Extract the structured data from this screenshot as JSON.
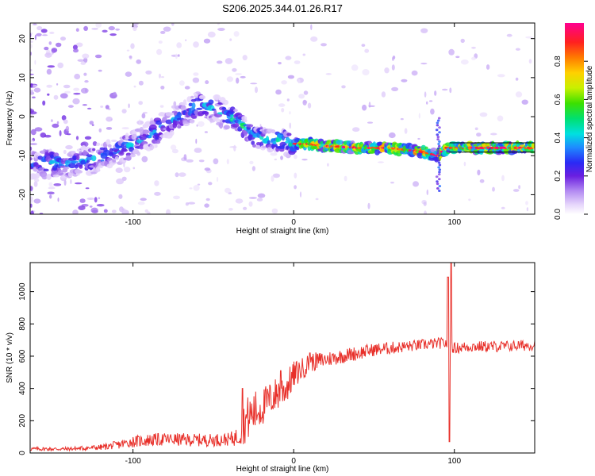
{
  "title": "S206.2025.344.01.26.R17",
  "chart_data": [
    {
      "type": "heatmap",
      "name": "spectrogram",
      "xlabel": "Height of straight line (km)",
      "ylabel": "Frequency (Hz)",
      "xlim": [
        -164,
        150
      ],
      "ylim": [
        -25,
        24
      ],
      "xticks": [
        -100,
        0,
        100
      ],
      "xtick_labels": [
        "-100",
        "0",
        "100"
      ],
      "yticks": [
        -20,
        -10,
        0,
        10,
        20
      ],
      "ytick_labels": [
        "-20",
        "-10",
        "0",
        "10",
        "20"
      ],
      "ridge": {
        "x": [
          -164,
          -150,
          -140,
          -125,
          -110,
          -100,
          -90,
          -80,
          -70,
          -60,
          -55,
          -45,
          -35,
          -25,
          -15,
          -5,
          0,
          10,
          20,
          40,
          60,
          70,
          80,
          90,
          95,
          100,
          120,
          150
        ],
        "y": [
          -12,
          -12,
          -12,
          -11,
          -9,
          -7,
          -5,
          -2,
          0,
          3,
          3,
          1,
          -1,
          -5,
          -6,
          -6,
          -7,
          -7,
          -7.5,
          -8,
          -8,
          -8.5,
          -9,
          -10,
          -8,
          -8,
          -8,
          -8
        ]
      },
      "colorbar": {
        "label": "Normalized spectral amplitude",
        "ticks": [
          0.0,
          0.2,
          0.4,
          0.6,
          0.8
        ],
        "tick_labels": [
          "0.0",
          "0.2",
          "0.4",
          "0.6",
          "0.8"
        ],
        "range": [
          0,
          1
        ]
      }
    },
    {
      "type": "line",
      "name": "snr",
      "xlabel": "Height of straight line (km)",
      "ylabel": "SNR (10 * v/v)",
      "xlim": [
        -164,
        150
      ],
      "ylim": [
        0,
        1180
      ],
      "xticks": [
        -100,
        0,
        100
      ],
      "xtick_labels": [
        "-100",
        "0",
        "100"
      ],
      "yticks": [
        0,
        200,
        400,
        600,
        800,
        1000
      ],
      "ytick_labels": [
        "0",
        "200",
        "400",
        "600",
        "800",
        "1000"
      ],
      "color": "#e8302a",
      "envelope": {
        "x": [
          -164,
          -140,
          -120,
          -110,
          -100,
          -90,
          -80,
          -60,
          -50,
          -40,
          -35,
          -30,
          -25,
          -20,
          -15,
          -10,
          -5,
          0,
          5,
          10,
          20,
          30,
          40,
          50,
          60,
          70,
          80,
          90,
          95,
          100,
          110,
          120,
          130,
          140,
          150
        ],
        "mean": [
          25,
          25,
          35,
          50,
          70,
          80,
          85,
          80,
          80,
          85,
          100,
          200,
          250,
          280,
          330,
          370,
          400,
          480,
          520,
          560,
          580,
          600,
          620,
          640,
          650,
          660,
          670,
          680,
          680,
          650,
          660,
          660,
          660,
          665,
          670
        ],
        "spread": [
          12,
          12,
          18,
          25,
          35,
          40,
          40,
          40,
          40,
          40,
          60,
          140,
          140,
          120,
          110,
          110,
          100,
          90,
          70,
          60,
          50,
          45,
          45,
          40,
          40,
          35,
          35,
          35,
          35,
          35,
          35,
          35,
          35,
          35,
          35
        ]
      },
      "spikes": [
        {
          "x": -32,
          "y": 400
        },
        {
          "x": -8,
          "y": 510
        },
        {
          "x": 10,
          "y": 620
        },
        {
          "x": 96,
          "y": 1090
        },
        {
          "x": 97,
          "y": 70
        },
        {
          "x": 98,
          "y": 1180
        }
      ]
    }
  ]
}
